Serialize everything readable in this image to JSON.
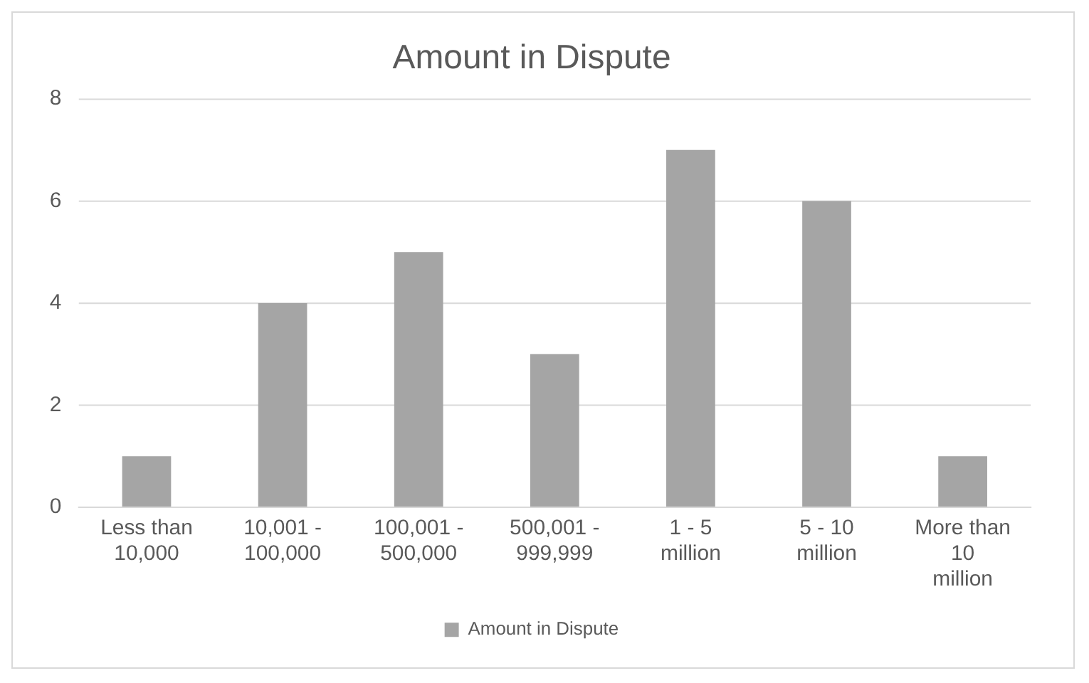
{
  "chart_data": {
    "type": "bar",
    "title": "Amount in Dispute",
    "categories": [
      "Less than 10,000",
      "10,001 - 100,000",
      "100,001 - 500,000",
      "500,001 - 999,999",
      "1 - 5 million",
      "5 - 10 million",
      "More than 10 million"
    ],
    "series": [
      {
        "name": "Amount in Dispute",
        "color": "#a5a5a5",
        "values": [
          1,
          4,
          5,
          3,
          7,
          6,
          1
        ]
      }
    ],
    "ylim": [
      0,
      8
    ],
    "yticks": [
      0,
      2,
      4,
      6,
      8
    ],
    "grid": "y",
    "legend": "bottom"
  }
}
